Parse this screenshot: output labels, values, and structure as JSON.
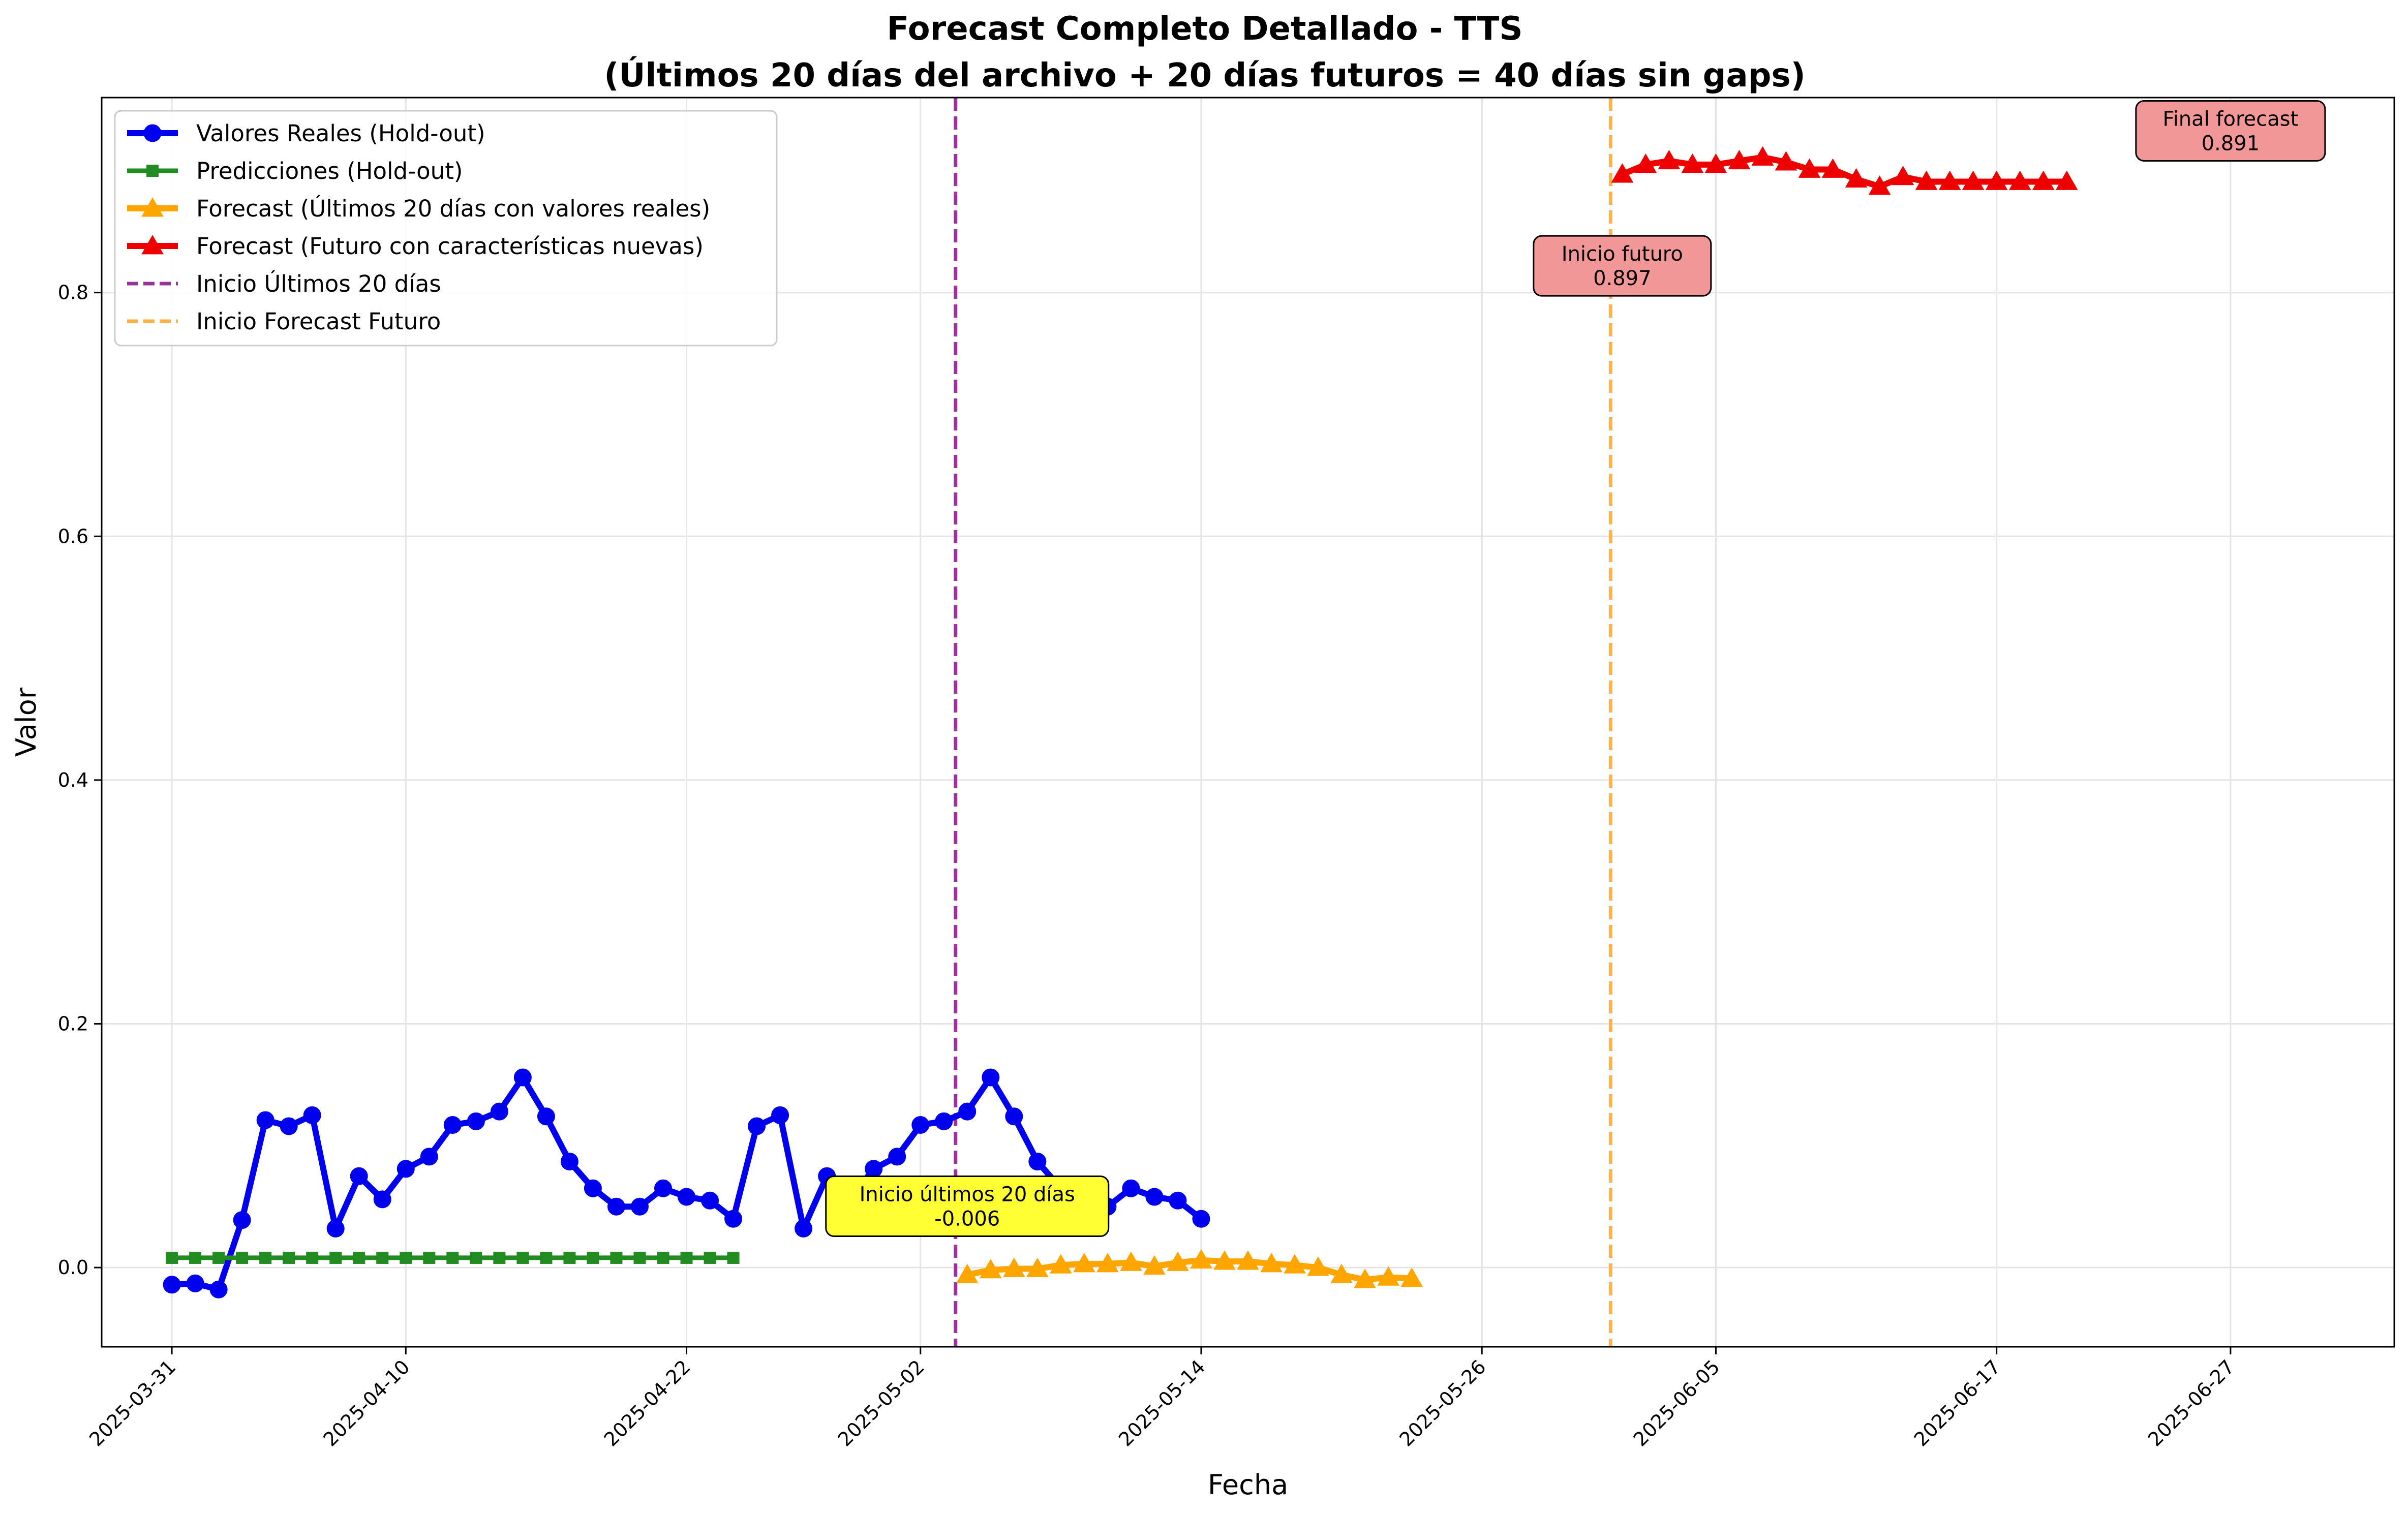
{
  "chart_data": {
    "type": "line",
    "title": "Forecast Completo Detallado - TTS",
    "subtitle": "(Últimos 20 días del archivo + 20 días futuros = 40 días sin gaps)",
    "xlabel": "Fecha",
    "ylabel": "Valor",
    "x_range": [
      "2025-03-28",
      "2025-07-04"
    ],
    "ylim": [
      -0.065,
      0.96
    ],
    "grid": true,
    "legend_position": "top-left",
    "x_ticks": [
      "2025-03-31",
      "2025-04-10",
      "2025-04-22",
      "2025-05-02",
      "2025-05-14",
      "2025-05-26",
      "2025-06-05",
      "2025-06-17",
      "2025-06-27"
    ],
    "y_ticks": [
      0.0,
      0.2,
      0.4,
      0.6,
      0.8
    ],
    "series": [
      {
        "name": "Valores Reales (Hold-out)",
        "color": "#0000ee",
        "marker": "circle",
        "start_date": "2025-03-31",
        "values": [
          -0.014,
          -0.013,
          -0.018,
          0.039,
          0.121,
          0.116,
          0.125,
          0.032,
          0.075,
          0.056,
          0.081,
          0.091,
          0.117,
          0.12,
          0.128,
          0.156,
          0.124,
          0.087,
          0.065,
          0.05,
          0.05,
          0.065,
          0.058,
          0.055,
          0.04,
          0.116,
          0.125,
          0.032,
          0.075,
          0.056,
          0.081,
          0.091,
          0.117,
          0.12,
          0.128,
          0.156,
          0.124,
          0.087,
          0.065,
          0.05,
          0.05,
          0.065,
          0.058,
          0.055,
          0.04
        ]
      },
      {
        "name": "Predicciones (Hold-out)",
        "color": "#228b22",
        "marker": "square",
        "start_date": "2025-03-31",
        "values": [
          0.008,
          0.008,
          0.008,
          0.008,
          0.008,
          0.008,
          0.008,
          0.008,
          0.008,
          0.008,
          0.008,
          0.008,
          0.008,
          0.008,
          0.008,
          0.008,
          0.008,
          0.008,
          0.008,
          0.008,
          0.008,
          0.008,
          0.008,
          0.008,
          0.008
        ]
      },
      {
        "name": "Forecast (Últimos 20 días con valores reales)",
        "color": "#ffa500",
        "marker": "triangle",
        "start_date": "2025-05-04",
        "values": [
          -0.006,
          -0.002,
          -0.001,
          -0.001,
          0.002,
          0.003,
          0.003,
          0.004,
          0.001,
          0.004,
          0.006,
          0.005,
          0.005,
          0.003,
          0.002,
          0.0,
          -0.006,
          -0.01,
          -0.008,
          -0.009
        ]
      },
      {
        "name": "Forecast (Futuro con características nuevas)",
        "color": "#ee0000",
        "marker": "triangle",
        "start_date": "2025-06-01",
        "values": [
          0.897,
          0.905,
          0.908,
          0.905,
          0.905,
          0.908,
          0.911,
          0.907,
          0.901,
          0.901,
          0.893,
          0.887,
          0.895,
          0.891,
          0.891,
          0.891,
          0.891,
          0.891,
          0.891,
          0.891
        ]
      }
    ],
    "vlines": [
      {
        "name": "Inicio Últimos 20 días",
        "date": "2025-05-03.5",
        "color": "#993399"
      },
      {
        "name": "Inicio Forecast Futuro",
        "date": "2025-05-31.5",
        "color": "#ffb347"
      }
    ],
    "annotations": [
      {
        "line1": "Inicio últimos 20 días",
        "line2": "-0.006",
        "color": "#ffff33"
      },
      {
        "line1": "Inicio futuro",
        "line2": "0.897",
        "color": "#f19797"
      },
      {
        "line1": "Final forecast",
        "line2": "0.891",
        "color": "#f19797"
      }
    ]
  }
}
